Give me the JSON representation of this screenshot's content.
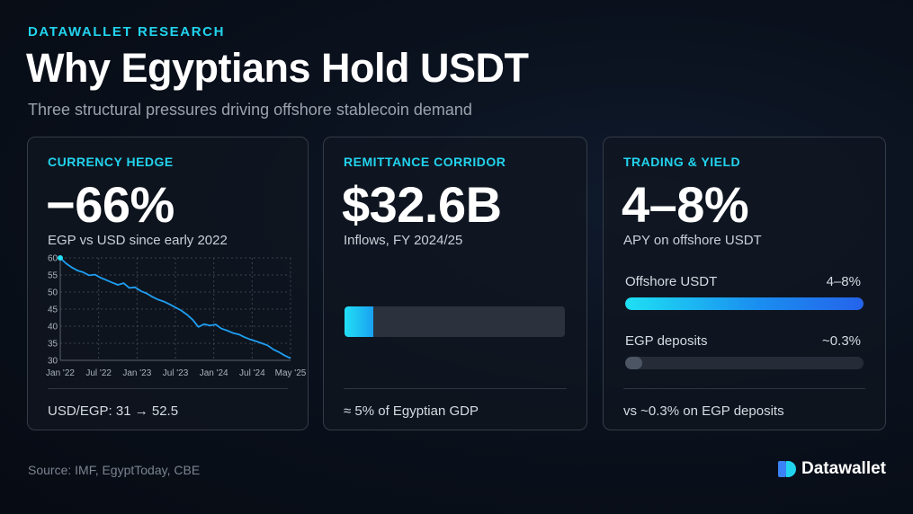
{
  "header": {
    "eyebrow": "DATAWALLET RESEARCH",
    "title": "Why Egyptians Hold USDT",
    "subtitle": "Three structural pressures driving offshore stablecoin demand"
  },
  "cards": [
    {
      "label": "CURRENCY HEDGE",
      "stat": "−66%",
      "desc": "EGP vs USD since early 2022",
      "footer": "USD/EGP: 31 → 52.5"
    },
    {
      "label": "REMITTANCE CORRIDOR",
      "stat": "$32.6B",
      "desc": "Inflows, FY 2024/25",
      "bar_fill_fraction": 0.13,
      "footer": "≈ 5% of Egyptian GDP"
    },
    {
      "label": "TRADING & YIELD",
      "stat": "4–8%",
      "desc": "APY on offshore USDT",
      "bars": [
        {
          "label": "Offshore USDT",
          "value": "4–8%",
          "fill_fraction": 1.0
        },
        {
          "label": "EGP deposits",
          "value": "~0.3%",
          "fill_fraction": 0.07
        }
      ],
      "footer": "vs ~0.3% on EGP deposits"
    }
  ],
  "chart_data": {
    "type": "line",
    "title": "",
    "xlabel": "",
    "ylabel": "",
    "x_ticks": [
      "Jan '22",
      "Jul '22",
      "Jan '23",
      "Jul '23",
      "Jan '24",
      "Jul '24",
      "May '25"
    ],
    "y_ticks": [
      60,
      55,
      50,
      45,
      40,
      35,
      30
    ],
    "ylim": [
      30,
      60
    ],
    "xlim": [
      0,
      40
    ],
    "grid": true,
    "series": [
      {
        "values": [
          [
            0,
            60
          ],
          [
            1,
            58.4
          ],
          [
            2,
            57.2
          ],
          [
            3,
            56.3
          ],
          [
            4,
            55.8
          ],
          [
            5,
            54.9
          ],
          [
            6,
            55.1
          ],
          [
            7,
            54.2
          ],
          [
            8,
            53.5
          ],
          [
            9,
            52.8
          ],
          [
            10,
            52.1
          ],
          [
            11,
            52.6
          ],
          [
            12,
            51.2
          ],
          [
            13,
            51.4
          ],
          [
            14,
            50.3
          ],
          [
            15,
            49.6
          ],
          [
            16,
            48.6
          ],
          [
            17,
            47.8
          ],
          [
            18,
            47.2
          ],
          [
            19,
            46.4
          ],
          [
            20,
            45.5
          ],
          [
            21,
            44.6
          ],
          [
            22,
            43.4
          ],
          [
            23,
            41.9
          ],
          [
            24,
            39.8
          ],
          [
            25,
            40.6
          ],
          [
            26,
            40.2
          ],
          [
            27,
            40.5
          ],
          [
            28,
            39.3
          ],
          [
            29,
            38.7
          ],
          [
            30,
            38.0
          ],
          [
            31,
            37.6
          ],
          [
            32,
            36.8
          ],
          [
            33,
            36.1
          ],
          [
            34,
            35.6
          ],
          [
            35,
            35.0
          ],
          [
            36,
            34.4
          ],
          [
            37,
            33.2
          ],
          [
            38,
            32.4
          ],
          [
            39,
            31.4
          ],
          [
            40,
            30.6
          ]
        ],
        "color": "#1e9ff2"
      }
    ]
  },
  "source": "Source: IMF, EgyptToday, CBE",
  "brand": {
    "name": "Datawallet",
    "icon": "datawallet-logo-icon",
    "icon_colors": [
      "#22d3ee",
      "#3b82f6"
    ]
  }
}
